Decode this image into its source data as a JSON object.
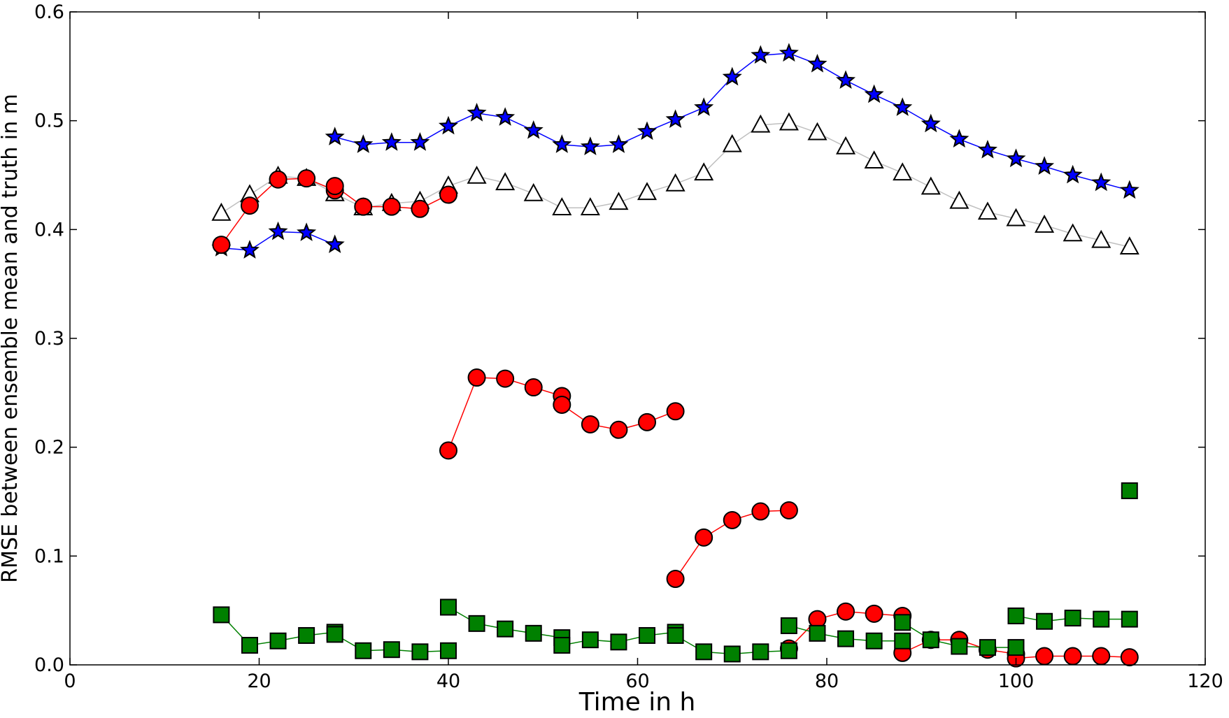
{
  "chart_data": {
    "type": "line",
    "title": "",
    "xlabel": "Time in h",
    "ylabel": "RMSE between ensemble mean and truth in m",
    "xlim": [
      0,
      120
    ],
    "ylim": [
      0,
      0.6
    ],
    "xticks": [
      0,
      20,
      40,
      60,
      80,
      100,
      120
    ],
    "yticks": [
      0.0,
      0.1,
      0.2,
      0.3,
      0.4,
      0.5,
      0.6
    ],
    "grid": false,
    "legend": "none",
    "series": [
      {
        "marker": "triangle",
        "line_color": "#bfbfbf",
        "fill": "#ffffff",
        "segments": [
          [
            [
              16,
              0.415
            ],
            [
              19,
              0.432
            ],
            [
              22,
              0.449
            ],
            [
              25,
              0.447
            ],
            [
              28,
              0.433
            ],
            [
              31,
              0.42
            ],
            [
              34,
              0.424
            ],
            [
              37,
              0.426
            ],
            [
              40,
              0.44
            ],
            [
              43,
              0.449
            ],
            [
              46,
              0.443
            ],
            [
              49,
              0.433
            ],
            [
              52,
              0.42
            ],
            [
              55,
              0.42
            ],
            [
              58,
              0.425
            ],
            [
              61,
              0.434
            ],
            [
              64,
              0.442
            ],
            [
              67,
              0.452
            ],
            [
              70,
              0.478
            ],
            [
              73,
              0.496
            ],
            [
              76,
              0.498
            ],
            [
              79,
              0.489
            ],
            [
              82,
              0.476
            ],
            [
              85,
              0.463
            ],
            [
              88,
              0.452
            ],
            [
              91,
              0.439
            ],
            [
              94,
              0.426
            ],
            [
              97,
              0.416
            ],
            [
              100,
              0.41
            ],
            [
              103,
              0.404
            ],
            [
              106,
              0.396
            ],
            [
              109,
              0.39
            ],
            [
              112,
              0.384
            ]
          ]
        ]
      },
      {
        "marker": "star",
        "line_color": "#0000ff",
        "fill": "#0000ff",
        "segments": [
          [
            [
              16,
              0.383
            ],
            [
              19,
              0.381
            ],
            [
              22,
              0.398
            ],
            [
              25,
              0.397
            ],
            [
              28,
              0.386
            ]
          ],
          [
            [
              28,
              0.485
            ],
            [
              31,
              0.478
            ],
            [
              34,
              0.48
            ],
            [
              37,
              0.48
            ],
            [
              40,
              0.495
            ],
            [
              43,
              0.507
            ],
            [
              46,
              0.503
            ],
            [
              49,
              0.491
            ],
            [
              52,
              0.478
            ],
            [
              55,
              0.476
            ],
            [
              58,
              0.478
            ],
            [
              61,
              0.49
            ],
            [
              64,
              0.501
            ],
            [
              67,
              0.512
            ],
            [
              70,
              0.54
            ],
            [
              73,
              0.56
            ],
            [
              76,
              0.562
            ],
            [
              79,
              0.552
            ],
            [
              82,
              0.537
            ],
            [
              85,
              0.524
            ],
            [
              88,
              0.512
            ],
            [
              91,
              0.497
            ],
            [
              94,
              0.483
            ],
            [
              97,
              0.473
            ],
            [
              100,
              0.465
            ],
            [
              103,
              0.458
            ],
            [
              106,
              0.45
            ],
            [
              109,
              0.443
            ],
            [
              112,
              0.436
            ]
          ]
        ]
      },
      {
        "marker": "circle",
        "line_color": "#ff0000",
        "fill": "#ff0000",
        "segments": [
          [
            [
              16,
              0.386
            ],
            [
              19,
              0.422
            ],
            [
              22,
              0.446
            ],
            [
              25,
              0.447
            ],
            [
              28,
              0.436
            ]
          ],
          [
            [
              28,
              0.44
            ],
            [
              31,
              0.421
            ],
            [
              34,
              0.421
            ],
            [
              37,
              0.419
            ],
            [
              40,
              0.432
            ]
          ],
          [
            [
              40,
              0.197
            ],
            [
              43,
              0.264
            ],
            [
              46,
              0.263
            ],
            [
              49,
              0.255
            ],
            [
              52,
              0.247
            ]
          ],
          [
            [
              52,
              0.239
            ],
            [
              55,
              0.221
            ],
            [
              58,
              0.216
            ],
            [
              61,
              0.223
            ],
            [
              64,
              0.233
            ]
          ],
          [
            [
              64,
              0.079
            ],
            [
              67,
              0.117
            ],
            [
              70,
              0.133
            ],
            [
              73,
              0.141
            ],
            [
              76,
              0.142
            ]
          ],
          [
            [
              76,
              0.015
            ],
            [
              79,
              0.042
            ],
            [
              82,
              0.049
            ],
            [
              85,
              0.047
            ],
            [
              88,
              0.045
            ]
          ],
          [
            [
              88,
              0.011
            ],
            [
              91,
              0.023
            ],
            [
              94,
              0.023
            ],
            [
              97,
              0.014
            ],
            [
              100,
              0.01
            ]
          ],
          [
            [
              100,
              0.006
            ],
            [
              103,
              0.008
            ],
            [
              106,
              0.008
            ],
            [
              109,
              0.008
            ],
            [
              112,
              0.007
            ]
          ]
        ]
      },
      {
        "marker": "square",
        "line_color": "#008000",
        "fill": "#008000",
        "segments": [
          [
            [
              16,
              0.046
            ],
            [
              19,
              0.018
            ],
            [
              22,
              0.022
            ],
            [
              25,
              0.027
            ],
            [
              28,
              0.03
            ]
          ],
          [
            [
              28,
              0.028
            ],
            [
              31,
              0.013
            ],
            [
              34,
              0.014
            ],
            [
              37,
              0.012
            ],
            [
              40,
              0.013
            ]
          ],
          [
            [
              40,
              0.053
            ],
            [
              43,
              0.038
            ],
            [
              46,
              0.033
            ],
            [
              49,
              0.029
            ],
            [
              52,
              0.025
            ]
          ],
          [
            [
              52,
              0.018
            ],
            [
              55,
              0.023
            ],
            [
              58,
              0.021
            ],
            [
              61,
              0.027
            ],
            [
              64,
              0.03
            ]
          ],
          [
            [
              64,
              0.027
            ],
            [
              67,
              0.012
            ],
            [
              70,
              0.01
            ],
            [
              73,
              0.012
            ],
            [
              76,
              0.013
            ]
          ],
          [
            [
              76,
              0.036
            ],
            [
              79,
              0.029
            ],
            [
              82,
              0.024
            ],
            [
              85,
              0.022
            ],
            [
              88,
              0.022
            ]
          ],
          [
            [
              88,
              0.039
            ],
            [
              91,
              0.023
            ],
            [
              94,
              0.017
            ],
            [
              97,
              0.016
            ],
            [
              100,
              0.016
            ]
          ],
          [
            [
              100,
              0.045
            ],
            [
              103,
              0.04
            ],
            [
              106,
              0.043
            ],
            [
              109,
              0.042
            ],
            [
              112,
              0.042
            ]
          ],
          [
            [
              112,
              0.16
            ]
          ]
        ]
      }
    ]
  }
}
